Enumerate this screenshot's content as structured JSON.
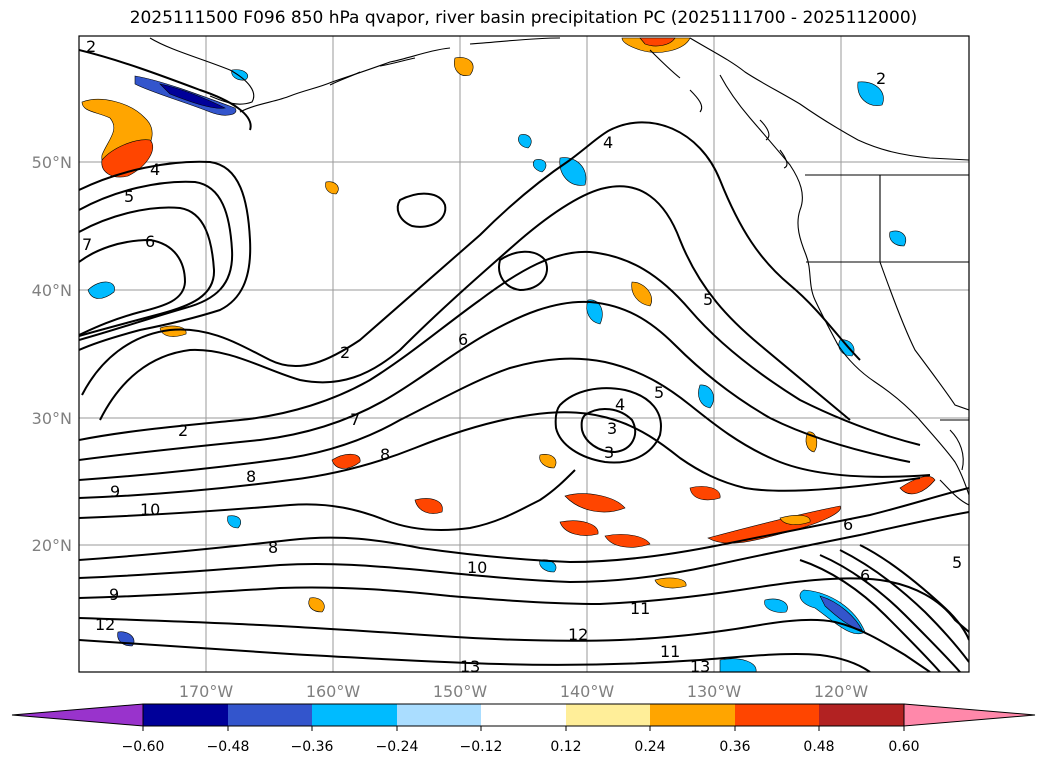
{
  "title": "2025111500 F096 850 hPa qvapor, river basin precipitation PC (2025111700 - 2025112000)",
  "map": {
    "lon_labels": [
      "170°W",
      "160°W",
      "150°W",
      "140°W",
      "130°W",
      "120°W"
    ],
    "lat_labels": [
      "50°N",
      "40°N",
      "30°N",
      "20°N"
    ],
    "grid": true
  },
  "contour_labels": [
    "2",
    "2",
    "2",
    "2",
    "4",
    "4",
    "5",
    "5",
    "5",
    "6",
    "6",
    "6",
    "6",
    "7",
    "7",
    "8",
    "8",
    "8",
    "9",
    "9",
    "10",
    "10",
    "11",
    "11",
    "12",
    "12",
    "13",
    "13",
    "3",
    "3",
    "4",
    "5"
  ],
  "colorbar": {
    "ticks": [
      "−0.60",
      "−0.48",
      "−0.36",
      "−0.24",
      "−0.12",
      "0.12",
      "0.24",
      "0.36",
      "0.48",
      "0.60"
    ],
    "colors": [
      "#9933cc",
      "#000099",
      "#3355cc",
      "#00bbff",
      "#aaddff",
      "#ffffff",
      "#ffee99",
      "#ffa500",
      "#ff4500",
      "#b22222",
      "#ff88aa"
    ]
  }
}
